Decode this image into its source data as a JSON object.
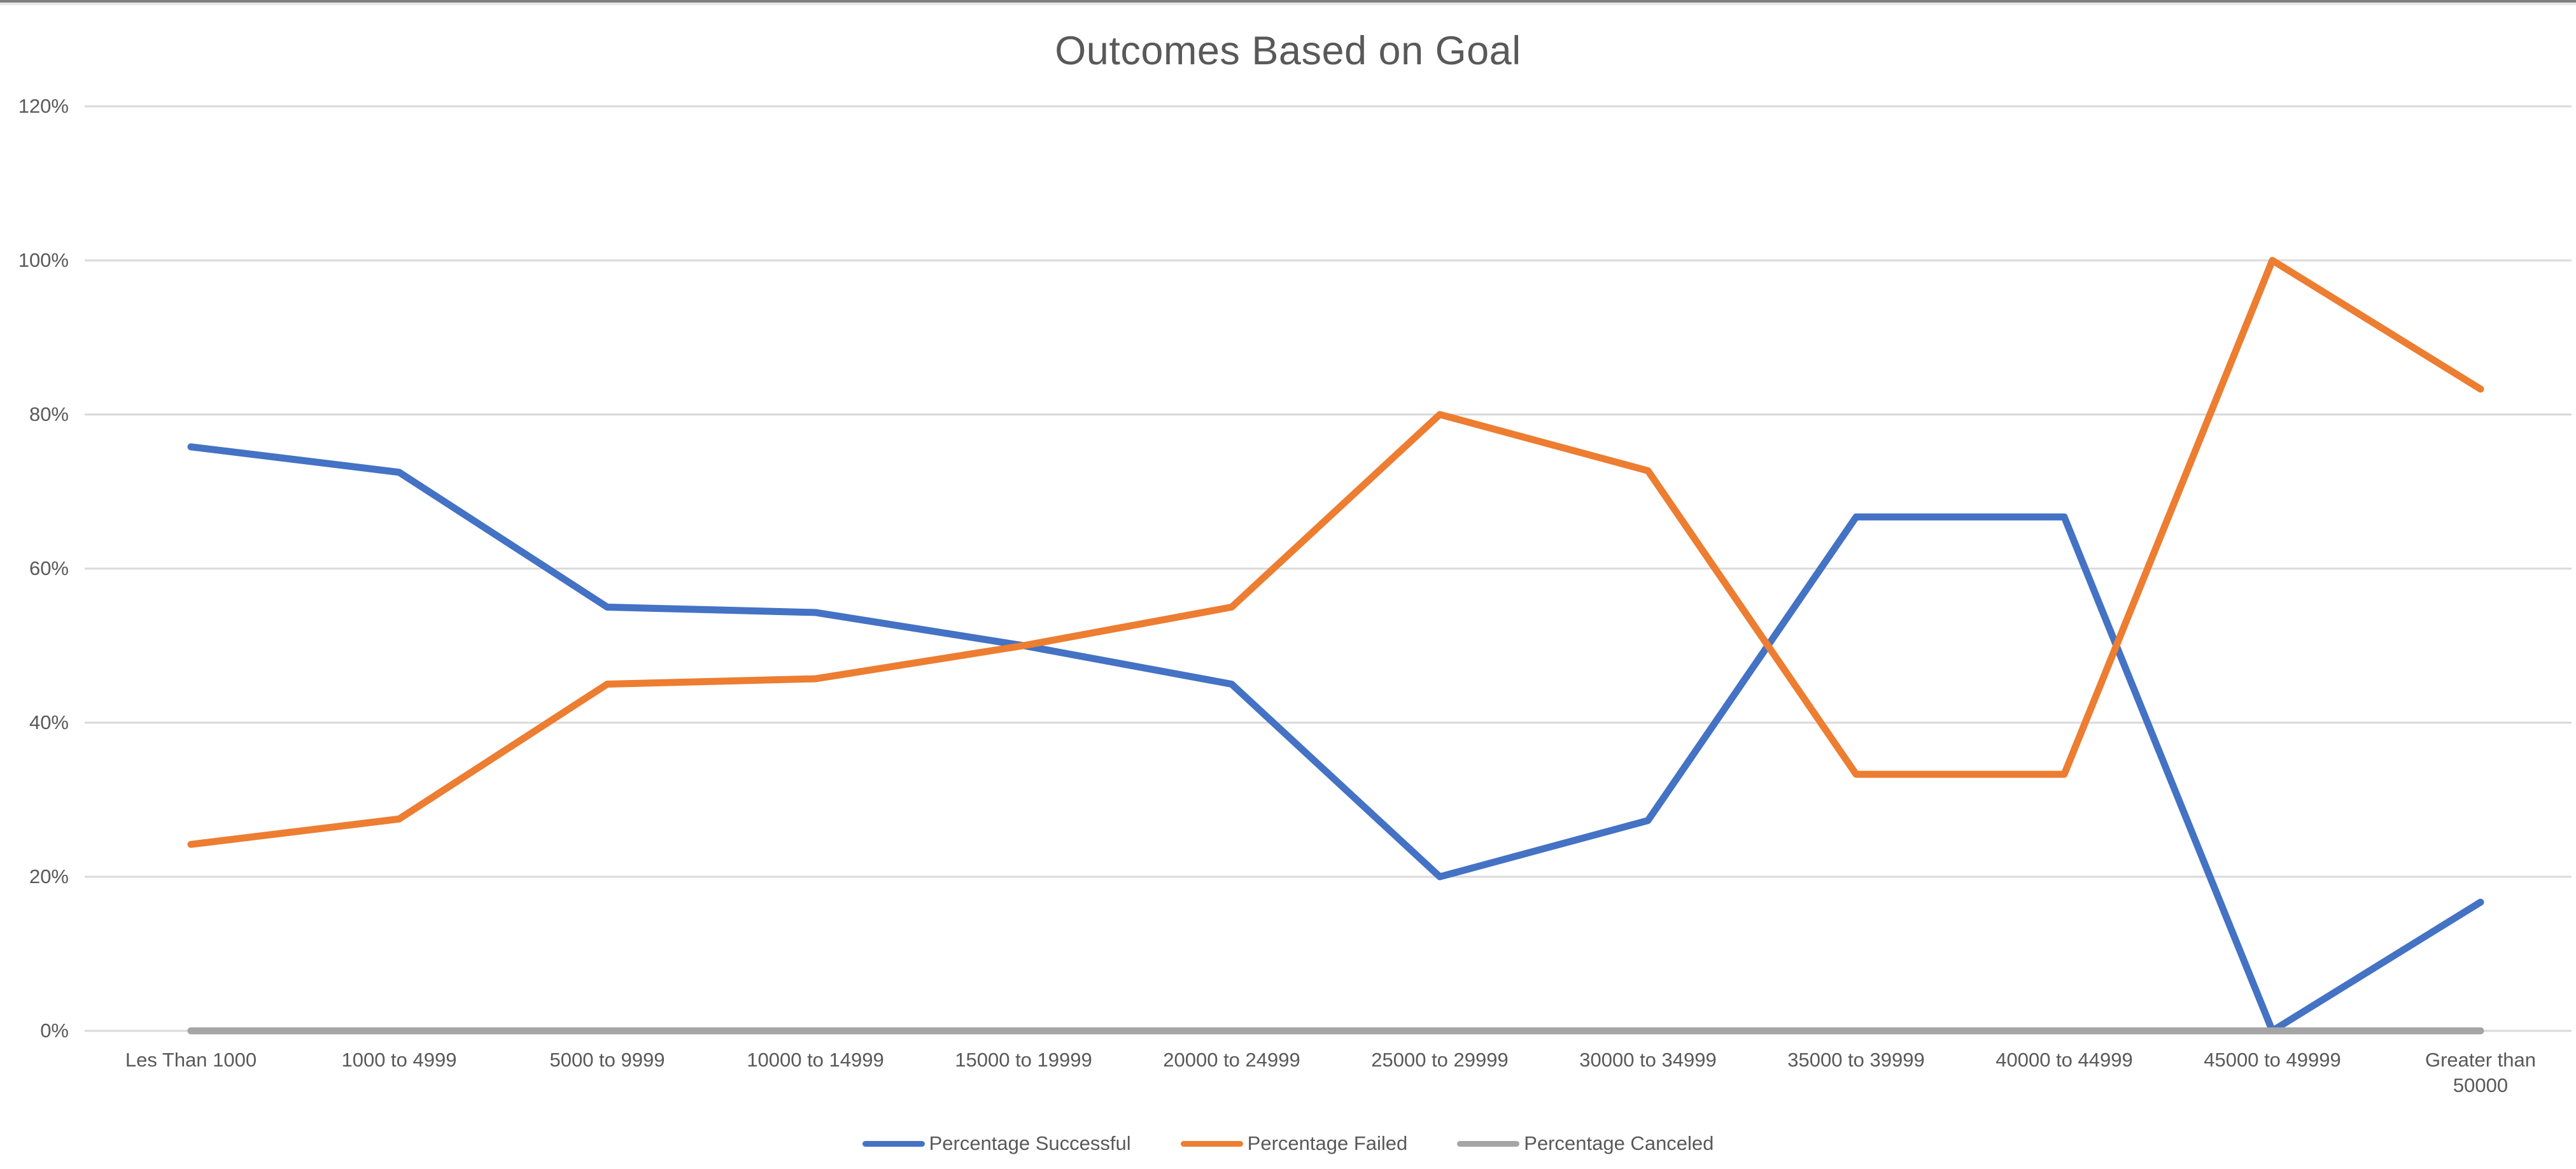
{
  "chart_data": {
    "type": "line",
    "title": "Outcomes Based on Goal",
    "xlabel": "",
    "ylabel": "",
    "categories": [
      "Les Than 1000",
      "1000 to 4999",
      "5000 to 9999",
      "10000 to 14999",
      "15000 to 19999",
      "20000 to 24999",
      "25000 to 29999",
      "30000 to 34999",
      "35000 to 39999",
      "40000 to 44999",
      "45000 to 49999",
      "Greater than\n50000"
    ],
    "series": [
      {
        "name": "Percentage Successful",
        "color": "#4472C4",
        "values": [
          75.8,
          72.5,
          55,
          54.3,
          50,
          45,
          20,
          27.3,
          66.7,
          66.7,
          0,
          16.7
        ]
      },
      {
        "name": "Percentage Failed",
        "color": "#ED7D31",
        "values": [
          24.2,
          27.5,
          45,
          45.7,
          50,
          55,
          80,
          72.7,
          33.3,
          33.3,
          100,
          83.3
        ]
      },
      {
        "name": "Percentage Canceled",
        "color": "#A5A5A5",
        "values": [
          0,
          0,
          0,
          0,
          0,
          0,
          0,
          0,
          0,
          0,
          0,
          0
        ]
      }
    ],
    "yticks": [
      {
        "label": "0%",
        "value": 0
      },
      {
        "label": "20%",
        "value": 20
      },
      {
        "label": "40%",
        "value": 40
      },
      {
        "label": "60%",
        "value": 60
      },
      {
        "label": "80%",
        "value": 80
      },
      {
        "label": "100%",
        "value": 100
      },
      {
        "label": "120%",
        "value": 120
      }
    ],
    "ylim": [
      0,
      120
    ],
    "grid": true,
    "legend_position": "bottom",
    "gridline_color": "#D9D9D9",
    "axis_text_color": "#595959"
  }
}
